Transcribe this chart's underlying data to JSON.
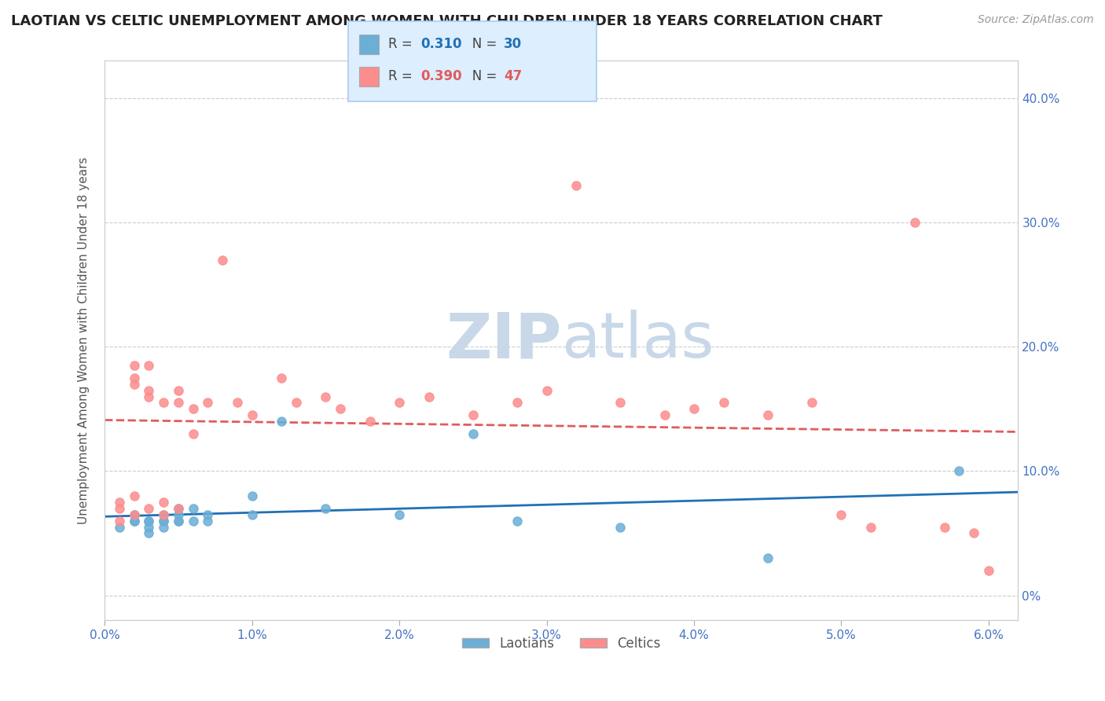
{
  "title": "LAOTIAN VS CELTIC UNEMPLOYMENT AMONG WOMEN WITH CHILDREN UNDER 18 YEARS CORRELATION CHART",
  "source": "Source: ZipAtlas.com",
  "ylabel": "Unemployment Among Women with Children Under 18 years",
  "laotian_R": 0.31,
  "laotian_N": 30,
  "celtic_R": 0.39,
  "celtic_N": 47,
  "xlim": [
    0.0,
    0.062
  ],
  "ylim": [
    -0.02,
    0.43
  ],
  "ytick_right_labels": [
    "0%",
    "10.0%",
    "20.0%",
    "30.0%",
    "40.0%"
  ],
  "ytick_right_values": [
    0.0,
    0.1,
    0.2,
    0.3,
    0.4
  ],
  "xtick_labels": [
    "0.0%",
    "1.0%",
    "2.0%",
    "3.0%",
    "4.0%",
    "5.0%",
    "6.0%"
  ],
  "xtick_values": [
    0.0,
    0.01,
    0.02,
    0.03,
    0.04,
    0.05,
    0.06
  ],
  "laotian_color": "#6baed6",
  "celtic_color": "#fc8d8d",
  "trend_laotian_color": "#2171b5",
  "trend_celtic_color": "#e05c5c",
  "background_color": "#ffffff",
  "watermark_ZIP": "ZIP",
  "watermark_atlas": "atlas",
  "watermark_color": "#c8d8e8",
  "legend_box_color": "#ddeeff",
  "laotian_x": [
    0.001,
    0.002,
    0.002,
    0.002,
    0.003,
    0.003,
    0.003,
    0.003,
    0.004,
    0.004,
    0.004,
    0.004,
    0.005,
    0.005,
    0.005,
    0.005,
    0.006,
    0.006,
    0.007,
    0.007,
    0.01,
    0.01,
    0.012,
    0.015,
    0.02,
    0.025,
    0.028,
    0.035,
    0.045,
    0.058
  ],
  "laotian_y": [
    0.055,
    0.065,
    0.06,
    0.06,
    0.06,
    0.055,
    0.06,
    0.05,
    0.06,
    0.065,
    0.06,
    0.055,
    0.06,
    0.065,
    0.07,
    0.06,
    0.07,
    0.06,
    0.06,
    0.065,
    0.08,
    0.065,
    0.14,
    0.07,
    0.065,
    0.13,
    0.06,
    0.055,
    0.03,
    0.1
  ],
  "celtic_x": [
    0.001,
    0.001,
    0.001,
    0.002,
    0.002,
    0.002,
    0.002,
    0.002,
    0.003,
    0.003,
    0.003,
    0.003,
    0.004,
    0.004,
    0.004,
    0.005,
    0.005,
    0.005,
    0.006,
    0.006,
    0.007,
    0.008,
    0.009,
    0.01,
    0.012,
    0.013,
    0.015,
    0.016,
    0.018,
    0.02,
    0.022,
    0.025,
    0.028,
    0.03,
    0.032,
    0.035,
    0.038,
    0.04,
    0.042,
    0.045,
    0.048,
    0.05,
    0.052,
    0.055,
    0.057,
    0.059,
    0.06
  ],
  "celtic_y": [
    0.06,
    0.075,
    0.07,
    0.08,
    0.17,
    0.185,
    0.175,
    0.065,
    0.185,
    0.165,
    0.16,
    0.07,
    0.065,
    0.155,
    0.075,
    0.165,
    0.155,
    0.07,
    0.15,
    0.13,
    0.155,
    0.27,
    0.155,
    0.145,
    0.175,
    0.155,
    0.16,
    0.15,
    0.14,
    0.155,
    0.16,
    0.145,
    0.155,
    0.165,
    0.33,
    0.155,
    0.145,
    0.15,
    0.155,
    0.145,
    0.155,
    0.065,
    0.055,
    0.3,
    0.055,
    0.05,
    0.02
  ]
}
